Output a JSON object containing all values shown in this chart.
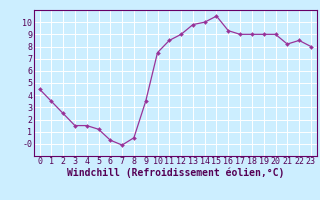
{
  "x": [
    0,
    1,
    2,
    3,
    4,
    5,
    6,
    7,
    8,
    9,
    10,
    11,
    12,
    13,
    14,
    15,
    16,
    17,
    18,
    19,
    20,
    21,
    22,
    23
  ],
  "y": [
    4.5,
    3.5,
    2.5,
    1.5,
    1.5,
    1.2,
    0.3,
    -0.1,
    0.5,
    3.5,
    7.5,
    8.5,
    9.0,
    9.8,
    10.0,
    10.5,
    9.3,
    9.0,
    9.0,
    9.0,
    9.0,
    8.2,
    8.5,
    8.0
  ],
  "xlabel": "Windchill (Refroidissement éolien,°C)",
  "xlim": [
    -0.5,
    23.5
  ],
  "ylim": [
    -1,
    11
  ],
  "yticks": [
    0,
    1,
    2,
    3,
    4,
    5,
    6,
    7,
    8,
    9,
    10
  ],
  "ytick_labels": [
    "-0",
    "1",
    "2",
    "3",
    "4",
    "5",
    "6",
    "7",
    "8",
    "9",
    "10"
  ],
  "xtick_labels": [
    "0",
    "1",
    "2",
    "3",
    "4",
    "5",
    "6",
    "7",
    "8",
    "9",
    "10",
    "11",
    "12",
    "13",
    "14",
    "15",
    "16",
    "17",
    "18",
    "19",
    "20",
    "21",
    "22",
    "23"
  ],
  "line_color": "#993399",
  "marker": "D",
  "marker_size": 2,
  "background_color": "#cceeff",
  "grid_color": "#ffffff",
  "xlabel_fontsize": 7,
  "tick_fontsize": 6,
  "spine_color": "#660066"
}
